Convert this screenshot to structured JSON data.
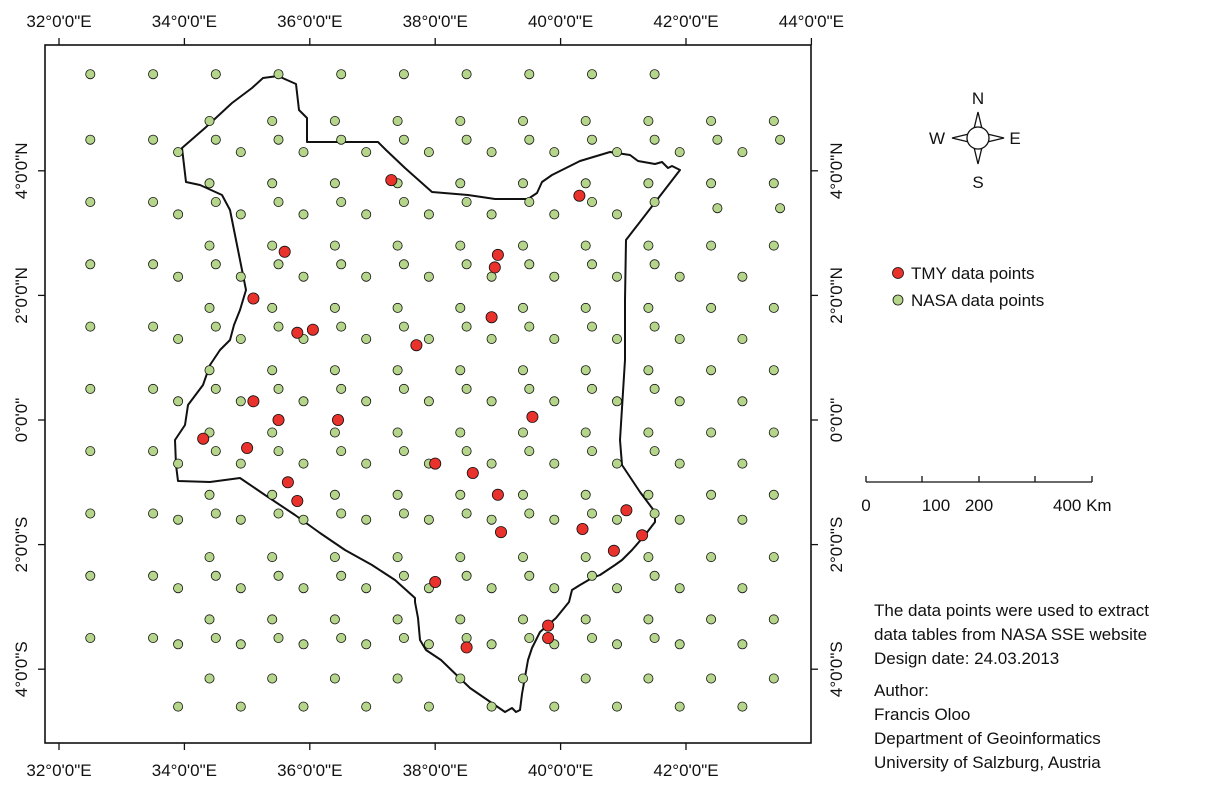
{
  "map": {
    "graticule": {
      "top_labels": [
        "32°0'0\"E",
        "34°0'0\"E",
        "36°0'0\"E",
        "38°0'0\"E",
        "40°0'0\"E",
        "42°0'0\"E",
        "44°0'0\"E"
      ],
      "bottom_labels": [
        "32°0'0\"E",
        "34°0'0\"E",
        "36°0'0\"E",
        "38°0'0\"E",
        "40°0'0\"E",
        "42°0'0\"E"
      ],
      "left_labels": [
        "4°0'0\"N",
        "2°0'0\"N",
        "0°0'0\"",
        "2°0'0\"S",
        "4°0'0\"S"
      ],
      "right_labels": [
        "4°0'0\"N",
        "2°0'0\"N",
        "0°0'0\"",
        "2°0'0\"S",
        "4°0'0\"S"
      ]
    },
    "colors": {
      "tmy": "#e8322b",
      "nasa": "#b5d58a",
      "outline": "#111111"
    },
    "nasa_points": [
      [
        32.5,
        5.55
      ],
      [
        33.5,
        5.55
      ],
      [
        34.5,
        5.55
      ],
      [
        35.5,
        5.55
      ],
      [
        36.5,
        5.55
      ],
      [
        37.5,
        5.55
      ],
      [
        38.5,
        5.55
      ],
      [
        39.5,
        5.55
      ],
      [
        40.5,
        5.55
      ],
      [
        41.5,
        5.55
      ],
      [
        32.5,
        4.5
      ],
      [
        33.5,
        4.5
      ],
      [
        34.5,
        4.5
      ],
      [
        35.5,
        4.5
      ],
      [
        36.5,
        4.5
      ],
      [
        37.5,
        4.5
      ],
      [
        38.5,
        4.5
      ],
      [
        39.5,
        4.5
      ],
      [
        40.5,
        4.5
      ],
      [
        41.5,
        4.5
      ],
      [
        42.5,
        4.5
      ],
      [
        43.5,
        4.5
      ],
      [
        33.9,
        4.3
      ],
      [
        34.9,
        4.3
      ],
      [
        35.9,
        4.3
      ],
      [
        36.9,
        4.3
      ],
      [
        37.9,
        4.3
      ],
      [
        38.9,
        4.3
      ],
      [
        39.9,
        4.3
      ],
      [
        40.9,
        4.3
      ],
      [
        41.9,
        4.3
      ],
      [
        42.9,
        4.3
      ],
      [
        34.4,
        4.8
      ],
      [
        35.4,
        4.8
      ],
      [
        36.4,
        4.8
      ],
      [
        37.4,
        4.8
      ],
      [
        38.4,
        4.8
      ],
      [
        39.4,
        4.8
      ],
      [
        40.4,
        4.8
      ],
      [
        41.4,
        4.8
      ],
      [
        42.4,
        4.8
      ],
      [
        43.4,
        4.8
      ],
      [
        32.5,
        3.5
      ],
      [
        33.5,
        3.5
      ],
      [
        34.5,
        3.5
      ],
      [
        35.5,
        3.5
      ],
      [
        36.5,
        3.5
      ],
      [
        37.5,
        3.5
      ],
      [
        38.5,
        3.5
      ],
      [
        39.5,
        3.5
      ],
      [
        40.5,
        3.5
      ],
      [
        41.5,
        3.5
      ],
      [
        42.5,
        3.4
      ],
      [
        43.5,
        3.4
      ],
      [
        33.9,
        3.3
      ],
      [
        34.9,
        3.3
      ],
      [
        35.9,
        3.3
      ],
      [
        36.9,
        3.3
      ],
      [
        37.9,
        3.3
      ],
      [
        38.9,
        3.3
      ],
      [
        39.9,
        3.3
      ],
      [
        40.9,
        3.3
      ],
      [
        34.4,
        3.8
      ],
      [
        35.4,
        3.8
      ],
      [
        36.4,
        3.8
      ],
      [
        37.4,
        3.8
      ],
      [
        38.4,
        3.8
      ],
      [
        39.4,
        3.8
      ],
      [
        40.4,
        3.8
      ],
      [
        41.4,
        3.8
      ],
      [
        42.4,
        3.8
      ],
      [
        43.4,
        3.8
      ],
      [
        32.5,
        2.5
      ],
      [
        33.5,
        2.5
      ],
      [
        34.5,
        2.5
      ],
      [
        35.5,
        2.5
      ],
      [
        36.5,
        2.5
      ],
      [
        37.5,
        2.5
      ],
      [
        38.5,
        2.5
      ],
      [
        39.5,
        2.5
      ],
      [
        40.5,
        2.5
      ],
      [
        41.5,
        2.5
      ],
      [
        33.9,
        2.3
      ],
      [
        34.9,
        2.3
      ],
      [
        35.9,
        2.3
      ],
      [
        36.9,
        2.3
      ],
      [
        37.9,
        2.3
      ],
      [
        38.9,
        2.3
      ],
      [
        39.9,
        2.3
      ],
      [
        40.9,
        2.3
      ],
      [
        41.9,
        2.3
      ],
      [
        42.9,
        2.3
      ],
      [
        34.4,
        2.8
      ],
      [
        35.4,
        2.8
      ],
      [
        36.4,
        2.8
      ],
      [
        37.4,
        2.8
      ],
      [
        38.4,
        2.8
      ],
      [
        39.4,
        2.8
      ],
      [
        40.4,
        2.8
      ],
      [
        41.4,
        2.8
      ],
      [
        42.4,
        2.8
      ],
      [
        43.4,
        2.8
      ],
      [
        32.5,
        1.5
      ],
      [
        33.5,
        1.5
      ],
      [
        34.5,
        1.5
      ],
      [
        35.5,
        1.5
      ],
      [
        36.5,
        1.5
      ],
      [
        37.5,
        1.5
      ],
      [
        38.5,
        1.5
      ],
      [
        39.5,
        1.5
      ],
      [
        40.5,
        1.5
      ],
      [
        41.5,
        1.5
      ],
      [
        33.9,
        1.3
      ],
      [
        34.9,
        1.3
      ],
      [
        35.9,
        1.3
      ],
      [
        36.9,
        1.3
      ],
      [
        37.9,
        1.3
      ],
      [
        38.9,
        1.3
      ],
      [
        39.9,
        1.3
      ],
      [
        40.9,
        1.3
      ],
      [
        41.9,
        1.3
      ],
      [
        42.9,
        1.3
      ],
      [
        34.4,
        1.8
      ],
      [
        35.4,
        1.8
      ],
      [
        36.4,
        1.8
      ],
      [
        37.4,
        1.8
      ],
      [
        38.4,
        1.8
      ],
      [
        39.4,
        1.8
      ],
      [
        40.4,
        1.8
      ],
      [
        41.4,
        1.8
      ],
      [
        42.4,
        1.8
      ],
      [
        43.4,
        1.8
      ],
      [
        32.5,
        0.5
      ],
      [
        33.5,
        0.5
      ],
      [
        34.5,
        0.5
      ],
      [
        35.5,
        0.5
      ],
      [
        36.5,
        0.5
      ],
      [
        37.5,
        0.5
      ],
      [
        38.5,
        0.5
      ],
      [
        39.5,
        0.5
      ],
      [
        40.5,
        0.5
      ],
      [
        41.5,
        0.5
      ],
      [
        33.9,
        0.3
      ],
      [
        34.9,
        0.3
      ],
      [
        35.9,
        0.3
      ],
      [
        36.9,
        0.3
      ],
      [
        37.9,
        0.3
      ],
      [
        38.9,
        0.3
      ],
      [
        39.9,
        0.3
      ],
      [
        40.9,
        0.3
      ],
      [
        41.9,
        0.3
      ],
      [
        42.9,
        0.3
      ],
      [
        34.4,
        0.8
      ],
      [
        35.4,
        0.8
      ],
      [
        36.4,
        0.8
      ],
      [
        37.4,
        0.8
      ],
      [
        38.4,
        0.8
      ],
      [
        39.4,
        0.8
      ],
      [
        40.4,
        0.8
      ],
      [
        41.4,
        0.8
      ],
      [
        42.4,
        0.8
      ],
      [
        43.4,
        0.8
      ],
      [
        32.5,
        -0.5
      ],
      [
        33.5,
        -0.5
      ],
      [
        34.5,
        -0.5
      ],
      [
        35.5,
        -0.5
      ],
      [
        36.5,
        -0.5
      ],
      [
        37.5,
        -0.5
      ],
      [
        38.5,
        -0.5
      ],
      [
        39.5,
        -0.5
      ],
      [
        40.5,
        -0.5
      ],
      [
        41.5,
        -0.5
      ],
      [
        33.9,
        -0.7
      ],
      [
        34.9,
        -0.7
      ],
      [
        35.9,
        -0.7
      ],
      [
        36.9,
        -0.7
      ],
      [
        37.9,
        -0.7
      ],
      [
        38.9,
        -0.7
      ],
      [
        39.9,
        -0.7
      ],
      [
        40.9,
        -0.7
      ],
      [
        41.9,
        -0.7
      ],
      [
        42.9,
        -0.7
      ],
      [
        34.4,
        -0.2
      ],
      [
        35.4,
        -0.2
      ],
      [
        36.4,
        -0.2
      ],
      [
        37.4,
        -0.2
      ],
      [
        38.4,
        -0.2
      ],
      [
        39.4,
        -0.2
      ],
      [
        40.4,
        -0.2
      ],
      [
        41.4,
        -0.2
      ],
      [
        42.4,
        -0.2
      ],
      [
        43.4,
        -0.2
      ],
      [
        32.5,
        -1.5
      ],
      [
        33.5,
        -1.5
      ],
      [
        34.5,
        -1.5
      ],
      [
        35.5,
        -1.5
      ],
      [
        36.5,
        -1.5
      ],
      [
        37.5,
        -1.5
      ],
      [
        38.5,
        -1.5
      ],
      [
        39.5,
        -1.5
      ],
      [
        40.5,
        -1.5
      ],
      [
        41.5,
        -1.5
      ],
      [
        33.9,
        -1.6
      ],
      [
        34.9,
        -1.6
      ],
      [
        35.9,
        -1.6
      ],
      [
        36.9,
        -1.6
      ],
      [
        37.9,
        -1.6
      ],
      [
        38.9,
        -1.6
      ],
      [
        39.9,
        -1.6
      ],
      [
        40.9,
        -1.6
      ],
      [
        41.9,
        -1.6
      ],
      [
        42.9,
        -1.6
      ],
      [
        34.4,
        -1.2
      ],
      [
        35.4,
        -1.2
      ],
      [
        36.4,
        -1.2
      ],
      [
        37.4,
        -1.2
      ],
      [
        38.4,
        -1.2
      ],
      [
        39.4,
        -1.2
      ],
      [
        40.4,
        -1.2
      ],
      [
        41.4,
        -1.2
      ],
      [
        42.4,
        -1.2
      ],
      [
        43.4,
        -1.2
      ],
      [
        32.5,
        -2.5
      ],
      [
        33.5,
        -2.5
      ],
      [
        34.5,
        -2.5
      ],
      [
        35.5,
        -2.5
      ],
      [
        36.5,
        -2.5
      ],
      [
        37.5,
        -2.5
      ],
      [
        38.5,
        -2.5
      ],
      [
        39.5,
        -2.5
      ],
      [
        40.5,
        -2.5
      ],
      [
        41.5,
        -2.5
      ],
      [
        33.9,
        -2.7
      ],
      [
        34.9,
        -2.7
      ],
      [
        35.9,
        -2.7
      ],
      [
        36.9,
        -2.7
      ],
      [
        37.9,
        -2.7
      ],
      [
        38.9,
        -2.7
      ],
      [
        39.9,
        -2.7
      ],
      [
        40.9,
        -2.7
      ],
      [
        41.9,
        -2.7
      ],
      [
        42.9,
        -2.7
      ],
      [
        34.4,
        -2.2
      ],
      [
        35.4,
        -2.2
      ],
      [
        36.4,
        -2.2
      ],
      [
        37.4,
        -2.2
      ],
      [
        38.4,
        -2.2
      ],
      [
        39.4,
        -2.2
      ],
      [
        40.4,
        -2.2
      ],
      [
        41.4,
        -2.2
      ],
      [
        42.4,
        -2.2
      ],
      [
        43.4,
        -2.2
      ],
      [
        32.5,
        -3.5
      ],
      [
        33.5,
        -3.5
      ],
      [
        34.5,
        -3.5
      ],
      [
        35.5,
        -3.5
      ],
      [
        36.5,
        -3.5
      ],
      [
        37.5,
        -3.5
      ],
      [
        38.5,
        -3.5
      ],
      [
        39.5,
        -3.5
      ],
      [
        40.5,
        -3.5
      ],
      [
        41.5,
        -3.5
      ],
      [
        33.9,
        -3.6
      ],
      [
        34.9,
        -3.6
      ],
      [
        35.9,
        -3.6
      ],
      [
        36.9,
        -3.6
      ],
      [
        37.9,
        -3.6
      ],
      [
        38.9,
        -3.6
      ],
      [
        39.9,
        -3.6
      ],
      [
        40.9,
        -3.6
      ],
      [
        41.9,
        -3.6
      ],
      [
        42.9,
        -3.6
      ],
      [
        34.4,
        -3.2
      ],
      [
        35.4,
        -3.2
      ],
      [
        36.4,
        -3.2
      ],
      [
        37.4,
        -3.2
      ],
      [
        38.4,
        -3.2
      ],
      [
        39.4,
        -3.2
      ],
      [
        40.4,
        -3.2
      ],
      [
        41.4,
        -3.2
      ],
      [
        42.4,
        -3.2
      ],
      [
        43.4,
        -3.2
      ],
      [
        33.9,
        -4.6
      ],
      [
        34.9,
        -4.6
      ],
      [
        35.9,
        -4.6
      ],
      [
        36.9,
        -4.6
      ],
      [
        37.9,
        -4.6
      ],
      [
        38.9,
        -4.6
      ],
      [
        39.9,
        -4.6
      ],
      [
        40.9,
        -4.6
      ],
      [
        41.9,
        -4.6
      ],
      [
        42.9,
        -4.6
      ],
      [
        34.4,
        -4.15
      ],
      [
        35.4,
        -4.15
      ],
      [
        36.4,
        -4.15
      ],
      [
        37.4,
        -4.15
      ],
      [
        38.4,
        -4.15
      ],
      [
        39.4,
        -4.15
      ],
      [
        40.4,
        -4.15
      ],
      [
        41.4,
        -4.15
      ],
      [
        42.4,
        -4.15
      ],
      [
        43.4,
        -4.15
      ]
    ],
    "tmy_points": [
      [
        37.3,
        3.85
      ],
      [
        40.3,
        3.6
      ],
      [
        35.6,
        2.7
      ],
      [
        39.0,
        2.65
      ],
      [
        38.95,
        2.45
      ],
      [
        35.1,
        1.95
      ],
      [
        38.9,
        1.65
      ],
      [
        35.8,
        1.4
      ],
      [
        36.05,
        1.45
      ],
      [
        37.7,
        1.2
      ],
      [
        35.1,
        0.3
      ],
      [
        39.55,
        0.05
      ],
      [
        35.5,
        0.0
      ],
      [
        36.45,
        0.0
      ],
      [
        34.3,
        -0.3
      ],
      [
        35.0,
        -0.45
      ],
      [
        38.0,
        -0.7
      ],
      [
        38.6,
        -0.85
      ],
      [
        35.65,
        -1.0
      ],
      [
        35.8,
        -1.3
      ],
      [
        39.0,
        -1.2
      ],
      [
        41.05,
        -1.45
      ],
      [
        40.35,
        -1.75
      ],
      [
        39.05,
        -1.8
      ],
      [
        41.3,
        -1.85
      ],
      [
        40.85,
        -2.1
      ],
      [
        38.0,
        -2.6
      ],
      [
        39.8,
        -3.3
      ],
      [
        39.8,
        -3.5
      ],
      [
        38.5,
        -3.65
      ]
    ]
  },
  "compass": {
    "n": "N",
    "s": "S",
    "e": "E",
    "w": "W"
  },
  "legend": {
    "tmy_label": "TMY data points",
    "nasa_label": "NASA data points"
  },
  "scale_bar": {
    "labels": [
      "0",
      "100",
      "200",
      "400 Km"
    ]
  },
  "notes": {
    "line1": "The data points were used to extract",
    "line2": "data tables from NASA SSE website",
    "line3": "Design date: 24.03.2013",
    "author_label": "Author:",
    "author_name": "Francis Oloo",
    "department": "Department of Geoinformatics",
    "university": "University of Salzburg, Austria"
  }
}
